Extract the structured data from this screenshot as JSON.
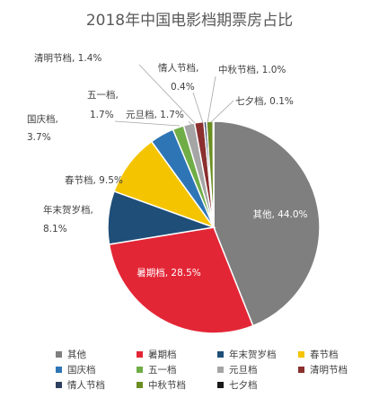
{
  "chart_data": {
    "type": "pie",
    "title": "2018年中国电影档期票房占比",
    "slices": [
      {
        "name": "其他",
        "value": 44.0,
        "label": "44.0%",
        "color": "#7f7f7f"
      },
      {
        "name": "暑期档",
        "value": 28.5,
        "label": "28.5%",
        "color": "#e32636"
      },
      {
        "name": "年末贺岁档",
        "value": 8.1,
        "label": "8.1%",
        "color": "#1f4e79"
      },
      {
        "name": "春节档",
        "value": 9.5,
        "label": "9.5%",
        "color": "#f5c400"
      },
      {
        "name": "国庆档",
        "value": 3.7,
        "label": "3.7%",
        "color": "#2e75b6"
      },
      {
        "name": "五一档",
        "value": 1.7,
        "label": "1.7%",
        "color": "#70ad47"
      },
      {
        "name": "元旦档",
        "value": 1.7,
        "label": "1.7%",
        "color": "#a5a5a5"
      },
      {
        "name": "清明节档",
        "value": 1.4,
        "label": "1.4%",
        "color": "#8b2f2f"
      },
      {
        "name": "情人节档",
        "value": 0.4,
        "label": "0.4%",
        "color": "#2f3f5f"
      },
      {
        "name": "中秋节档",
        "value": 1.0,
        "label": "1.0%",
        "color": "#6b8e23"
      },
      {
        "name": "七夕档",
        "value": 0.1,
        "label": "0.1%",
        "color": "#1a1a1a"
      }
    ],
    "legend_position": "bottom"
  }
}
